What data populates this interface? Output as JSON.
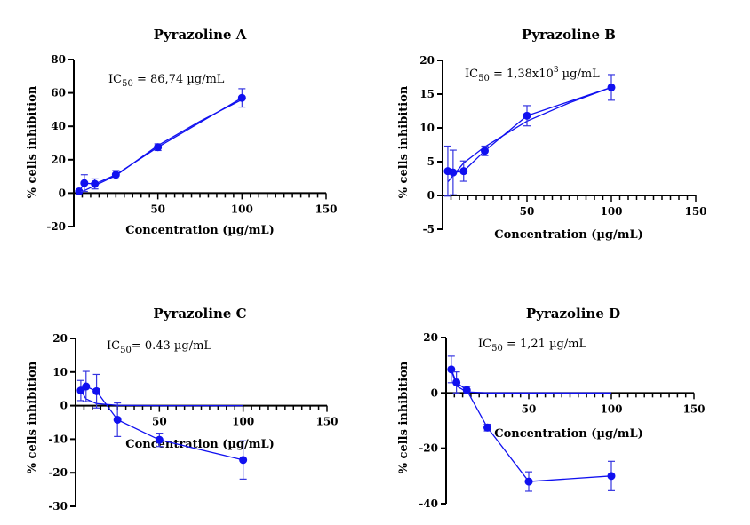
{
  "chart_data": [
    {
      "type": "scatter",
      "title": "Pyrazoline A",
      "xlabel": "Concentration (µg/mL)",
      "ylabel": "% cells inhibition",
      "annotation": {
        "prefix": "IC",
        "sub": "50",
        "text": " = 86,74 µg/mL"
      },
      "xlim": [
        0,
        150
      ],
      "ylim": [
        -20,
        80
      ],
      "xticks": [
        50,
        100,
        150
      ],
      "yticks": [
        80,
        60,
        40,
        20,
        0,
        -20
      ],
      "x": [
        3.125,
        6.25,
        12.5,
        25,
        50,
        100
      ],
      "y": [
        1,
        6,
        5.5,
        11,
        27.5,
        57
      ],
      "error": [
        0.5,
        5,
        3,
        2.5,
        2,
        5.5
      ],
      "fit": {
        "x": [
          3.125,
          12.5,
          25,
          50,
          75,
          100
        ],
        "y": [
          0,
          4.5,
          10.5,
          28.5,
          43,
          56
        ]
      },
      "color": "#1010f0"
    },
    {
      "type": "scatter",
      "title": "Pyrazoline B",
      "xlabel": "Concentration (µg/mL)",
      "ylabel": "% cells inhibition",
      "annotation": {
        "prefix": "IC",
        "sub": "50",
        "text": " = 1,38x10",
        "sup": "3",
        "suffix": " µg/mL"
      },
      "xlim": [
        0,
        150
      ],
      "ylim": [
        -5,
        20
      ],
      "xticks": [
        50,
        100,
        150
      ],
      "yticks": [
        20,
        15,
        10,
        5,
        0,
        -5
      ],
      "x": [
        3.125,
        6.25,
        12.5,
        25,
        50,
        100
      ],
      "y": [
        3.6,
        3.4,
        3.6,
        6.6,
        11.8,
        16
      ],
      "error": [
        3.7,
        3.3,
        1.5,
        0.7,
        1.5,
        1.9
      ],
      "fit": {
        "x": [
          3.125,
          12.5,
          25,
          50,
          75,
          100
        ],
        "y": [
          2,
          4.8,
          7.2,
          11,
          13.7,
          16
        ]
      },
      "color": "#1010f0"
    },
    {
      "type": "scatter",
      "title": "Pyrazoline C",
      "xlabel": "Concentration (µg/mL)",
      "ylabel": "% cells inhibition",
      "annotation": {
        "prefix": "IC",
        "sub": "50",
        "text": "= 0.43 µg/mL"
      },
      "xlim": [
        0,
        150
      ],
      "ylim": [
        -30,
        20
      ],
      "xticks": [
        50,
        100,
        150
      ],
      "yticks": [
        20,
        10,
        0,
        -10,
        -20,
        -30
      ],
      "x": [
        3.125,
        6.25,
        12.5,
        25,
        50,
        100
      ],
      "y": [
        4.5,
        5.7,
        4.3,
        -4.2,
        -10.2,
        -16.2
      ],
      "error": [
        3,
        4.5,
        5,
        5,
        2,
        5.7
      ],
      "fit": {
        "x": [
          3.125,
          6.25,
          12.5,
          25,
          50,
          100
        ],
        "y": [
          4.5,
          2,
          0.6,
          0.1,
          0,
          0
        ]
      },
      "color": "#1010f0"
    },
    {
      "type": "scatter",
      "title": "Pyrazoline D",
      "xlabel": "Concentration (µg/mL)",
      "ylabel": "% cells inhibition",
      "annotation": {
        "prefix": "IC",
        "sub": "50",
        "text": " = 1,21 µg/mL"
      },
      "xlim": [
        0,
        150
      ],
      "ylim": [
        -40,
        20
      ],
      "xticks": [
        50,
        100,
        150
      ],
      "yticks": [
        20,
        0,
        -20,
        -40
      ],
      "x": [
        3.125,
        6.25,
        12.5,
        25,
        50,
        100
      ],
      "y": [
        8.5,
        3.8,
        1,
        -12.5,
        -32,
        -30
      ],
      "error": [
        4.8,
        3.8,
        1.3,
        1.2,
        3.5,
        5.3
      ],
      "fit": {
        "x": [
          3.125,
          6.25,
          12.5,
          25,
          50,
          100
        ],
        "y": [
          8.5,
          2.5,
          0.4,
          0,
          0,
          0
        ]
      },
      "color": "#1010f0"
    }
  ]
}
